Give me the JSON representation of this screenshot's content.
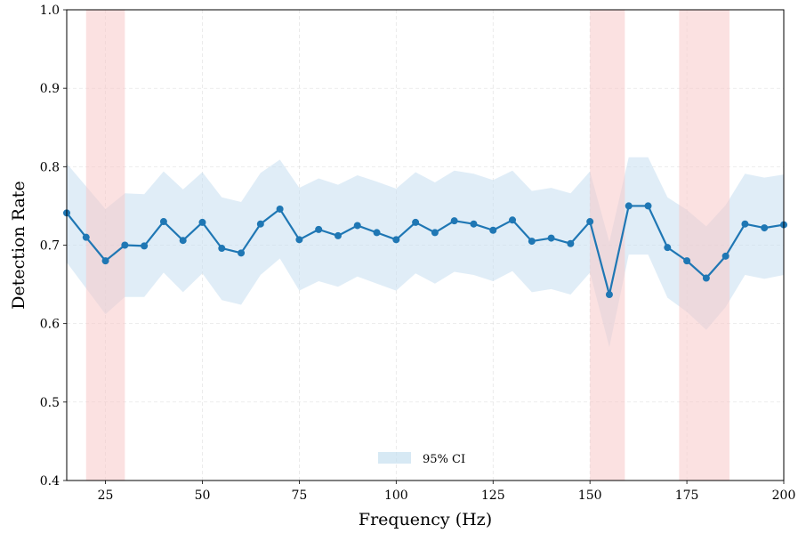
{
  "chart_data": {
    "type": "line",
    "title": "",
    "xlabel": "Frequency (Hz)",
    "ylabel": "Detection Rate",
    "xlim": [
      15,
      200
    ],
    "ylim": [
      0.4,
      1.0
    ],
    "x_ticks": [
      25,
      50,
      75,
      100,
      125,
      150,
      175,
      200
    ],
    "y_ticks": [
      0.4,
      0.5,
      0.6,
      0.7,
      0.8,
      0.9,
      1.0
    ],
    "x_tick_labels": [
      "25",
      "50",
      "75",
      "100",
      "125",
      "150",
      "175",
      "200"
    ],
    "y_tick_labels": [
      "0.4",
      "0.5",
      "0.6",
      "0.7",
      "0.8",
      "0.9",
      "1.0"
    ],
    "grid": true,
    "legend": {
      "placement": "lower-center",
      "entries": [
        "95% CI"
      ]
    },
    "colors": {
      "line": "#1f77b4",
      "ci_band": "#c6dff0",
      "highlight_band": "#f8c8c8"
    },
    "highlight_bands": [
      {
        "x_start": 20,
        "x_end": 30
      },
      {
        "x_start": 150,
        "x_end": 159
      },
      {
        "x_start": 173,
        "x_end": 186
      }
    ],
    "series": [
      {
        "x": [
          15,
          20,
          25,
          30,
          35,
          40,
          45,
          50,
          55,
          60,
          65,
          70,
          75,
          80,
          85,
          90,
          95,
          100,
          105,
          110,
          115,
          120,
          125,
          130,
          135,
          140,
          145,
          150,
          155,
          160,
          165,
          170,
          175,
          180,
          185,
          190,
          195,
          200
        ],
        "y": [
          0.741,
          0.71,
          0.68,
          0.7,
          0.699,
          0.73,
          0.706,
          0.729,
          0.696,
          0.69,
          0.727,
          0.746,
          0.707,
          0.72,
          0.712,
          0.725,
          0.716,
          0.707,
          0.729,
          0.716,
          0.731,
          0.727,
          0.719,
          0.732,
          0.705,
          0.709,
          0.702,
          0.73,
          0.637,
          0.75,
          0.75,
          0.697,
          0.68,
          0.658,
          0.686,
          0.727,
          0.722,
          0.726
        ],
        "ci_lower": [
          0.678,
          0.645,
          0.612,
          0.634,
          0.634,
          0.665,
          0.64,
          0.664,
          0.63,
          0.624,
          0.662,
          0.683,
          0.642,
          0.654,
          0.647,
          0.66,
          0.651,
          0.642,
          0.664,
          0.651,
          0.666,
          0.662,
          0.654,
          0.667,
          0.64,
          0.644,
          0.637,
          0.665,
          0.57,
          0.688,
          0.688,
          0.633,
          0.615,
          0.592,
          0.621,
          0.662,
          0.657,
          0.662
        ],
        "ci_upper": [
          0.804,
          0.775,
          0.746,
          0.766,
          0.765,
          0.794,
          0.771,
          0.793,
          0.761,
          0.755,
          0.792,
          0.809,
          0.773,
          0.785,
          0.777,
          0.789,
          0.781,
          0.772,
          0.793,
          0.78,
          0.795,
          0.791,
          0.783,
          0.795,
          0.769,
          0.773,
          0.766,
          0.794,
          0.704,
          0.812,
          0.812,
          0.761,
          0.745,
          0.724,
          0.751,
          0.791,
          0.786,
          0.79
        ]
      }
    ]
  }
}
